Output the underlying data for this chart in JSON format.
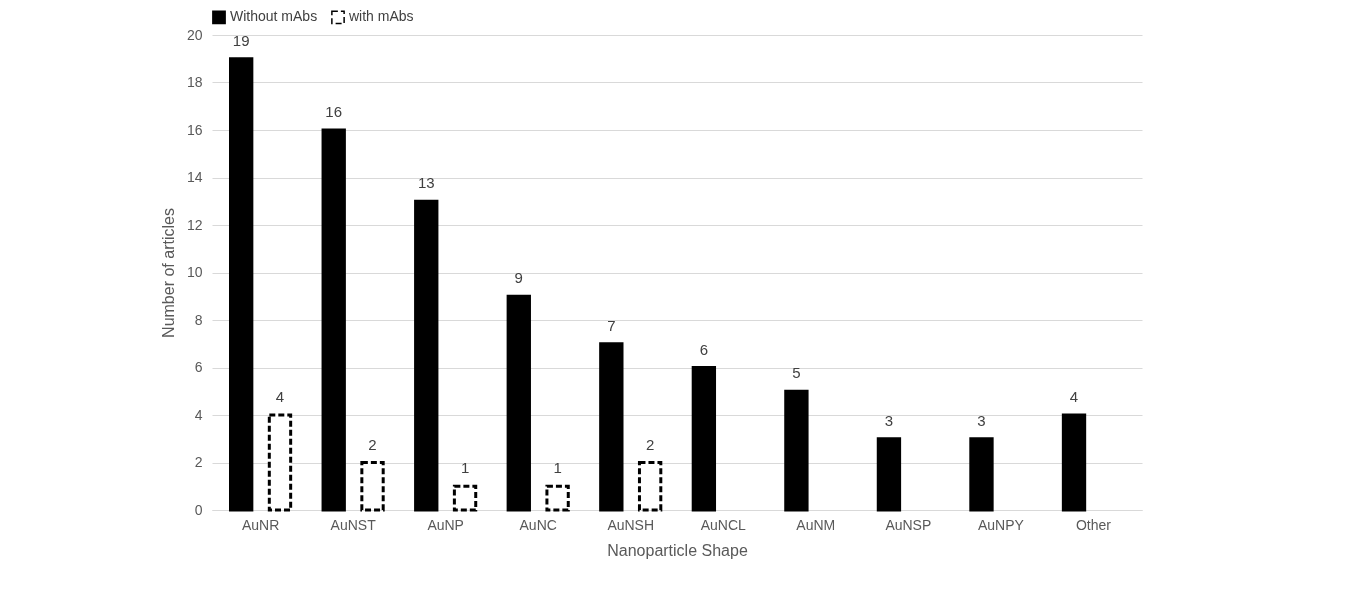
{
  "chart_data": {
    "type": "bar",
    "xlabel": "Nanoparticle Shape",
    "ylabel": "Number of articles",
    "categories": [
      "AuNR",
      "AuNST",
      "AuNP",
      "AuNC",
      "AuNSH",
      "AuNCL",
      "AuNM",
      "AuNSP",
      "AuNPY",
      "Other"
    ],
    "series": [
      {
        "name": "Without mAbs",
        "color": "#000000",
        "values": [
          19,
          16,
          13,
          9,
          7,
          6,
          5,
          3,
          3,
          4
        ]
      },
      {
        "name": "with mAbs",
        "color": "#000000",
        "line_style": "dashed",
        "values": [
          4,
          2,
          1,
          1,
          2,
          null,
          null,
          null,
          null,
          null
        ]
      }
    ],
    "ylim": [
      0,
      20
    ],
    "yticks": [
      0,
      2,
      4,
      6,
      8,
      10,
      12,
      14,
      16,
      18,
      20
    ],
    "grid": "y",
    "legend": "top",
    "data_labels": true
  }
}
